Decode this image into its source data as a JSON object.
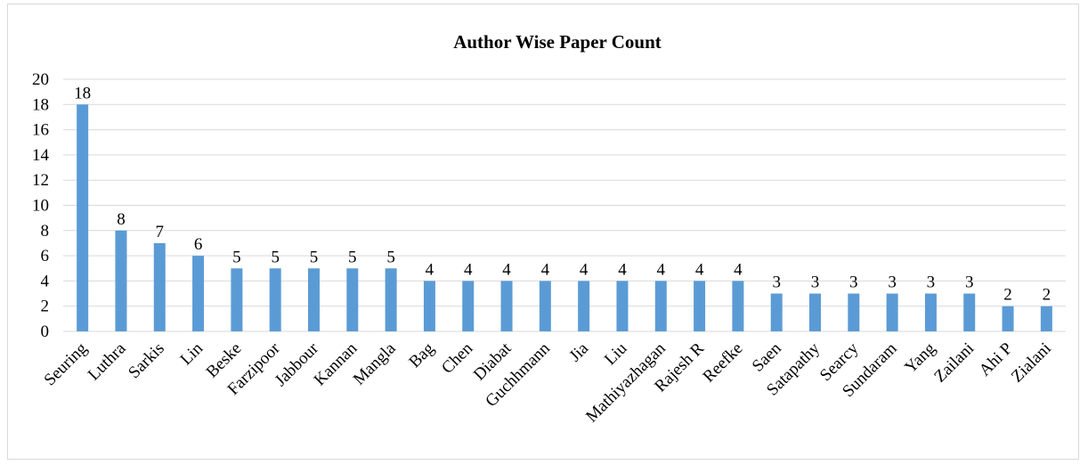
{
  "chart_data": {
    "type": "bar",
    "title": "Author Wise Paper Count",
    "xlabel": "",
    "ylabel": "",
    "ylim": [
      0,
      20
    ],
    "yticks": [
      0,
      2,
      4,
      6,
      8,
      10,
      12,
      14,
      16,
      18,
      20
    ],
    "grid": true,
    "legend": "none",
    "bar_color": "#5b9bd5",
    "categories": [
      "Seuring",
      "Luthra",
      "Sarkis",
      "Lin",
      "Beske",
      "Farzipoor",
      "Jabbour",
      "Kannan",
      "Mangla",
      "Bag",
      "Chen",
      "Diabat",
      "Guchhmann",
      "Jia",
      "Liu",
      "Mathiyazhagan",
      "Rajesh R",
      "Reefke",
      "Saen",
      "Satapathy",
      "Searcy",
      "Sundaram",
      "Yang",
      "Zailani",
      "Ahi P",
      "Zialani"
    ],
    "values": [
      18,
      8,
      7,
      6,
      5,
      5,
      5,
      5,
      5,
      4,
      4,
      4,
      4,
      4,
      4,
      4,
      4,
      4,
      3,
      3,
      3,
      3,
      3,
      3,
      2,
      2
    ]
  }
}
